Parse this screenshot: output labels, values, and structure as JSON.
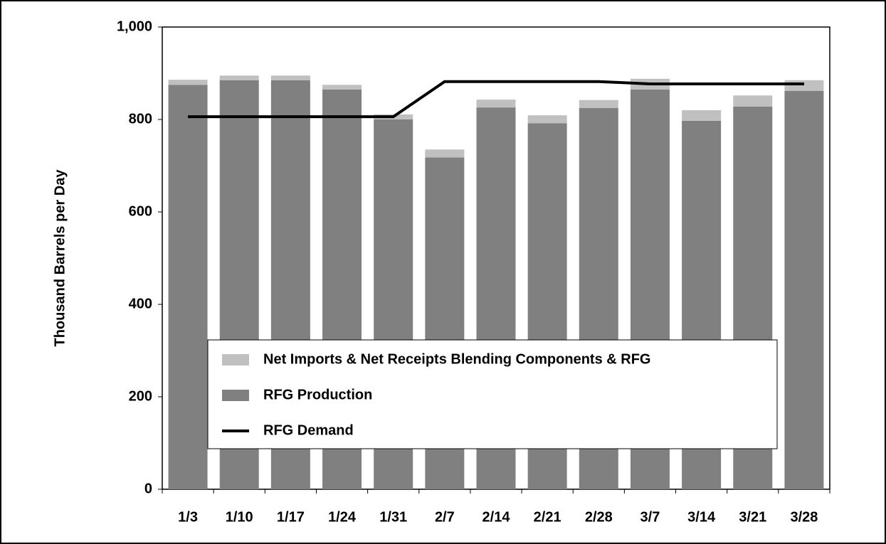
{
  "chart_data": {
    "type": "bar",
    "stacked": true,
    "y_label": "Thousand Barrels per Day",
    "categories": [
      "1/3",
      "1/10",
      "1/17",
      "1/24",
      "1/31",
      "2/7",
      "2/14",
      "2/21",
      "2/28",
      "3/7",
      "3/14",
      "3/21",
      "3/28"
    ],
    "series": [
      {
        "name": "Net Imports & Net Receipts Blending Components & RFG",
        "color": "#c0c0c0",
        "values": [
          11,
          10,
          10,
          10,
          11,
          17,
          17,
          17,
          17,
          23,
          23,
          24,
          23
        ]
      },
      {
        "name": "RFG Production",
        "color": "#808080",
        "values": [
          875,
          885,
          885,
          865,
          800,
          718,
          826,
          792,
          825,
          865,
          797,
          828,
          862
        ]
      },
      {
        "name": "RFG Demand",
        "type": "line",
        "color": "#000000",
        "values": [
          806,
          806,
          806,
          806,
          806,
          882,
          882,
          882,
          882,
          877,
          877,
          877,
          877
        ]
      }
    ],
    "ylim": [
      0,
      1000
    ],
    "yticks": [
      0,
      200,
      400,
      600,
      800,
      {
        "value": 1000,
        "label": "1,000"
      }
    ],
    "grid": false
  }
}
